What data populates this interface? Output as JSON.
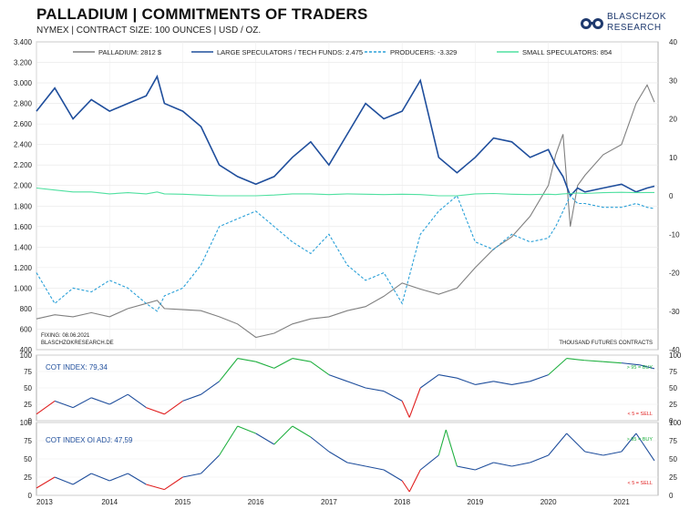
{
  "header": {
    "title": "PALLADIUM | COMMITMENTS OF TRADERS",
    "subtitle": "NYMEX | CONTRACT SIZE: 100 OUNCES | USD / OZ."
  },
  "logo": {
    "line1": "BLASCHZOK",
    "line2": "RESEARCH"
  },
  "colors": {
    "price": "#808080",
    "large_spec": "#1f4e9c",
    "producers": "#2aa0d8",
    "small_spec": "#4fe0a0",
    "sell": "#e02020",
    "buy": "#20b040"
  },
  "chart_data": [
    {
      "type": "line",
      "legend": [
        {
          "key": "price",
          "label": "PALLADIUM: 2812 $"
        },
        {
          "key": "large_spec",
          "label": "LARGE SPECULATORS / TECH FUNDS: 2.475"
        },
        {
          "key": "producers",
          "label": "PRODUCERS: -3.329"
        },
        {
          "key": "small_spec",
          "label": "SMALL SPECULATORS: 854"
        }
      ],
      "left_axis": {
        "min": 400,
        "max": 3400,
        "ticks": [
          "400",
          "600",
          "800",
          "1.000",
          "1.200",
          "1.400",
          "1.600",
          "1.800",
          "2.000",
          "2.200",
          "2.400",
          "2.600",
          "2.800",
          "3.000",
          "3.200",
          "3.400"
        ]
      },
      "right_axis": {
        "min": -40,
        "max": 40,
        "ticks": [
          "-40",
          "-30",
          "-20",
          "-10",
          "0",
          "10",
          "20",
          "30",
          "40"
        ],
        "label": "THOUSAND FUTURES CONTRACTS"
      },
      "notes": [
        "FIXING: 08.06.2021",
        "BLASCHZOKRESEARCH.DE"
      ],
      "x": [
        2013.0,
        2013.25,
        2013.5,
        2013.75,
        2014.0,
        2014.25,
        2014.5,
        2014.65,
        2014.75,
        2015.0,
        2015.25,
        2015.5,
        2015.75,
        2016.0,
        2016.25,
        2016.5,
        2016.75,
        2017.0,
        2017.25,
        2017.5,
        2017.75,
        2018.0,
        2018.25,
        2018.5,
        2018.75,
        2019.0,
        2019.25,
        2019.5,
        2019.75,
        2020.0,
        2020.1,
        2020.2,
        2020.3,
        2020.4,
        2020.5,
        2020.75,
        2021.0,
        2021.2,
        2021.35,
        2021.45
      ],
      "series": [
        {
          "key": "price",
          "values": [
            700,
            740,
            720,
            760,
            720,
            800,
            850,
            880,
            800,
            790,
            780,
            720,
            650,
            520,
            560,
            650,
            700,
            720,
            780,
            820,
            920,
            1050,
            990,
            940,
            1000,
            1200,
            1380,
            1500,
            1700,
            2000,
            2300,
            2500,
            1600,
            2000,
            2100,
            2300,
            2400,
            2800,
            2980,
            2812
          ]
        },
        {
          "key": "large_spec",
          "values": [
            22,
            28,
            20,
            25,
            22,
            24,
            26,
            31,
            24,
            22,
            18,
            8,
            5,
            3,
            5,
            10,
            14,
            8,
            16,
            24,
            20,
            22,
            30,
            10,
            6,
            10,
            15,
            14,
            10,
            12,
            8,
            5,
            0,
            2,
            1,
            2,
            3,
            1,
            2,
            2.475
          ]
        },
        {
          "key": "producers",
          "values": [
            -20,
            -28,
            -24,
            -25,
            -22,
            -24,
            -28,
            -30,
            -26,
            -24,
            -18,
            -8,
            -6,
            -4,
            -8,
            -12,
            -15,
            -10,
            -18,
            -22,
            -20,
            -28,
            -10,
            -4,
            0,
            -12,
            -14,
            -10,
            -12,
            -11,
            -8,
            -4,
            0,
            -2,
            -2,
            -3,
            -3,
            -2,
            -3,
            -3.329
          ]
        },
        {
          "key": "small_spec",
          "values": [
            2,
            1.5,
            1,
            1,
            0.5,
            0.8,
            0.5,
            1,
            0.5,
            0.4,
            0.2,
            0,
            0,
            0,
            0.2,
            0.5,
            0.5,
            0.3,
            0.5,
            0.4,
            0.3,
            0.4,
            0.3,
            0,
            0,
            0.5,
            0.6,
            0.4,
            0.3,
            0.4,
            0.3,
            0.5,
            0.6,
            0.7,
            0.6,
            0.8,
            0.9,
            0.8,
            0.85,
            0.854
          ]
        }
      ]
    },
    {
      "type": "line",
      "title": "COT INDEX: 79,34",
      "ylim": [
        0,
        100
      ],
      "ticks": [
        "0",
        "25",
        "50",
        "75",
        "100"
      ],
      "buy_label": "> 95 = BUY",
      "sell_label": "< 5 = SELL",
      "x": [
        2013.0,
        2013.25,
        2013.5,
        2013.75,
        2014.0,
        2014.25,
        2014.5,
        2014.75,
        2015.0,
        2015.25,
        2015.5,
        2015.75,
        2016.0,
        2016.25,
        2016.5,
        2016.75,
        2017.0,
        2017.25,
        2017.5,
        2017.75,
        2018.0,
        2018.1,
        2018.25,
        2018.5,
        2018.75,
        2019.0,
        2019.25,
        2019.5,
        2019.75,
        2020.0,
        2020.25,
        2020.5,
        2020.75,
        2021.0,
        2021.25,
        2021.45
      ],
      "values": [
        10,
        30,
        20,
        35,
        25,
        40,
        20,
        10,
        30,
        40,
        60,
        95,
        90,
        80,
        95,
        90,
        70,
        60,
        50,
        45,
        30,
        5,
        50,
        70,
        65,
        55,
        60,
        55,
        60,
        70,
        95,
        92,
        90,
        88,
        85,
        79.34
      ]
    },
    {
      "type": "line",
      "title": "COT INDEX OI ADJ: 47,59",
      "ylim": [
        0,
        100
      ],
      "ticks": [
        "0",
        "25",
        "50",
        "75",
        "100"
      ],
      "buy_label": "> 95 = BUY",
      "sell_label": "< 5 = SELL",
      "x": [
        2013.0,
        2013.25,
        2013.5,
        2013.75,
        2014.0,
        2014.25,
        2014.5,
        2014.75,
        2015.0,
        2015.25,
        2015.5,
        2015.75,
        2016.0,
        2016.25,
        2016.5,
        2016.75,
        2017.0,
        2017.25,
        2017.5,
        2017.75,
        2018.0,
        2018.1,
        2018.25,
        2018.5,
        2018.6,
        2018.75,
        2019.0,
        2019.25,
        2019.5,
        2019.75,
        2020.0,
        2020.25,
        2020.5,
        2020.75,
        2021.0,
        2021.2,
        2021.45
      ],
      "values": [
        10,
        25,
        15,
        30,
        20,
        30,
        15,
        8,
        25,
        30,
        55,
        95,
        85,
        70,
        95,
        80,
        60,
        45,
        40,
        35,
        20,
        5,
        35,
        55,
        90,
        40,
        35,
        45,
        40,
        45,
        55,
        85,
        60,
        55,
        60,
        85,
        47.59
      ]
    }
  ],
  "x_axis": {
    "min": 2013.0,
    "max": 2021.5,
    "ticks": [
      "2013",
      "2014",
      "2015",
      "2016",
      "2017",
      "2018",
      "2019",
      "2020",
      "2021"
    ]
  }
}
